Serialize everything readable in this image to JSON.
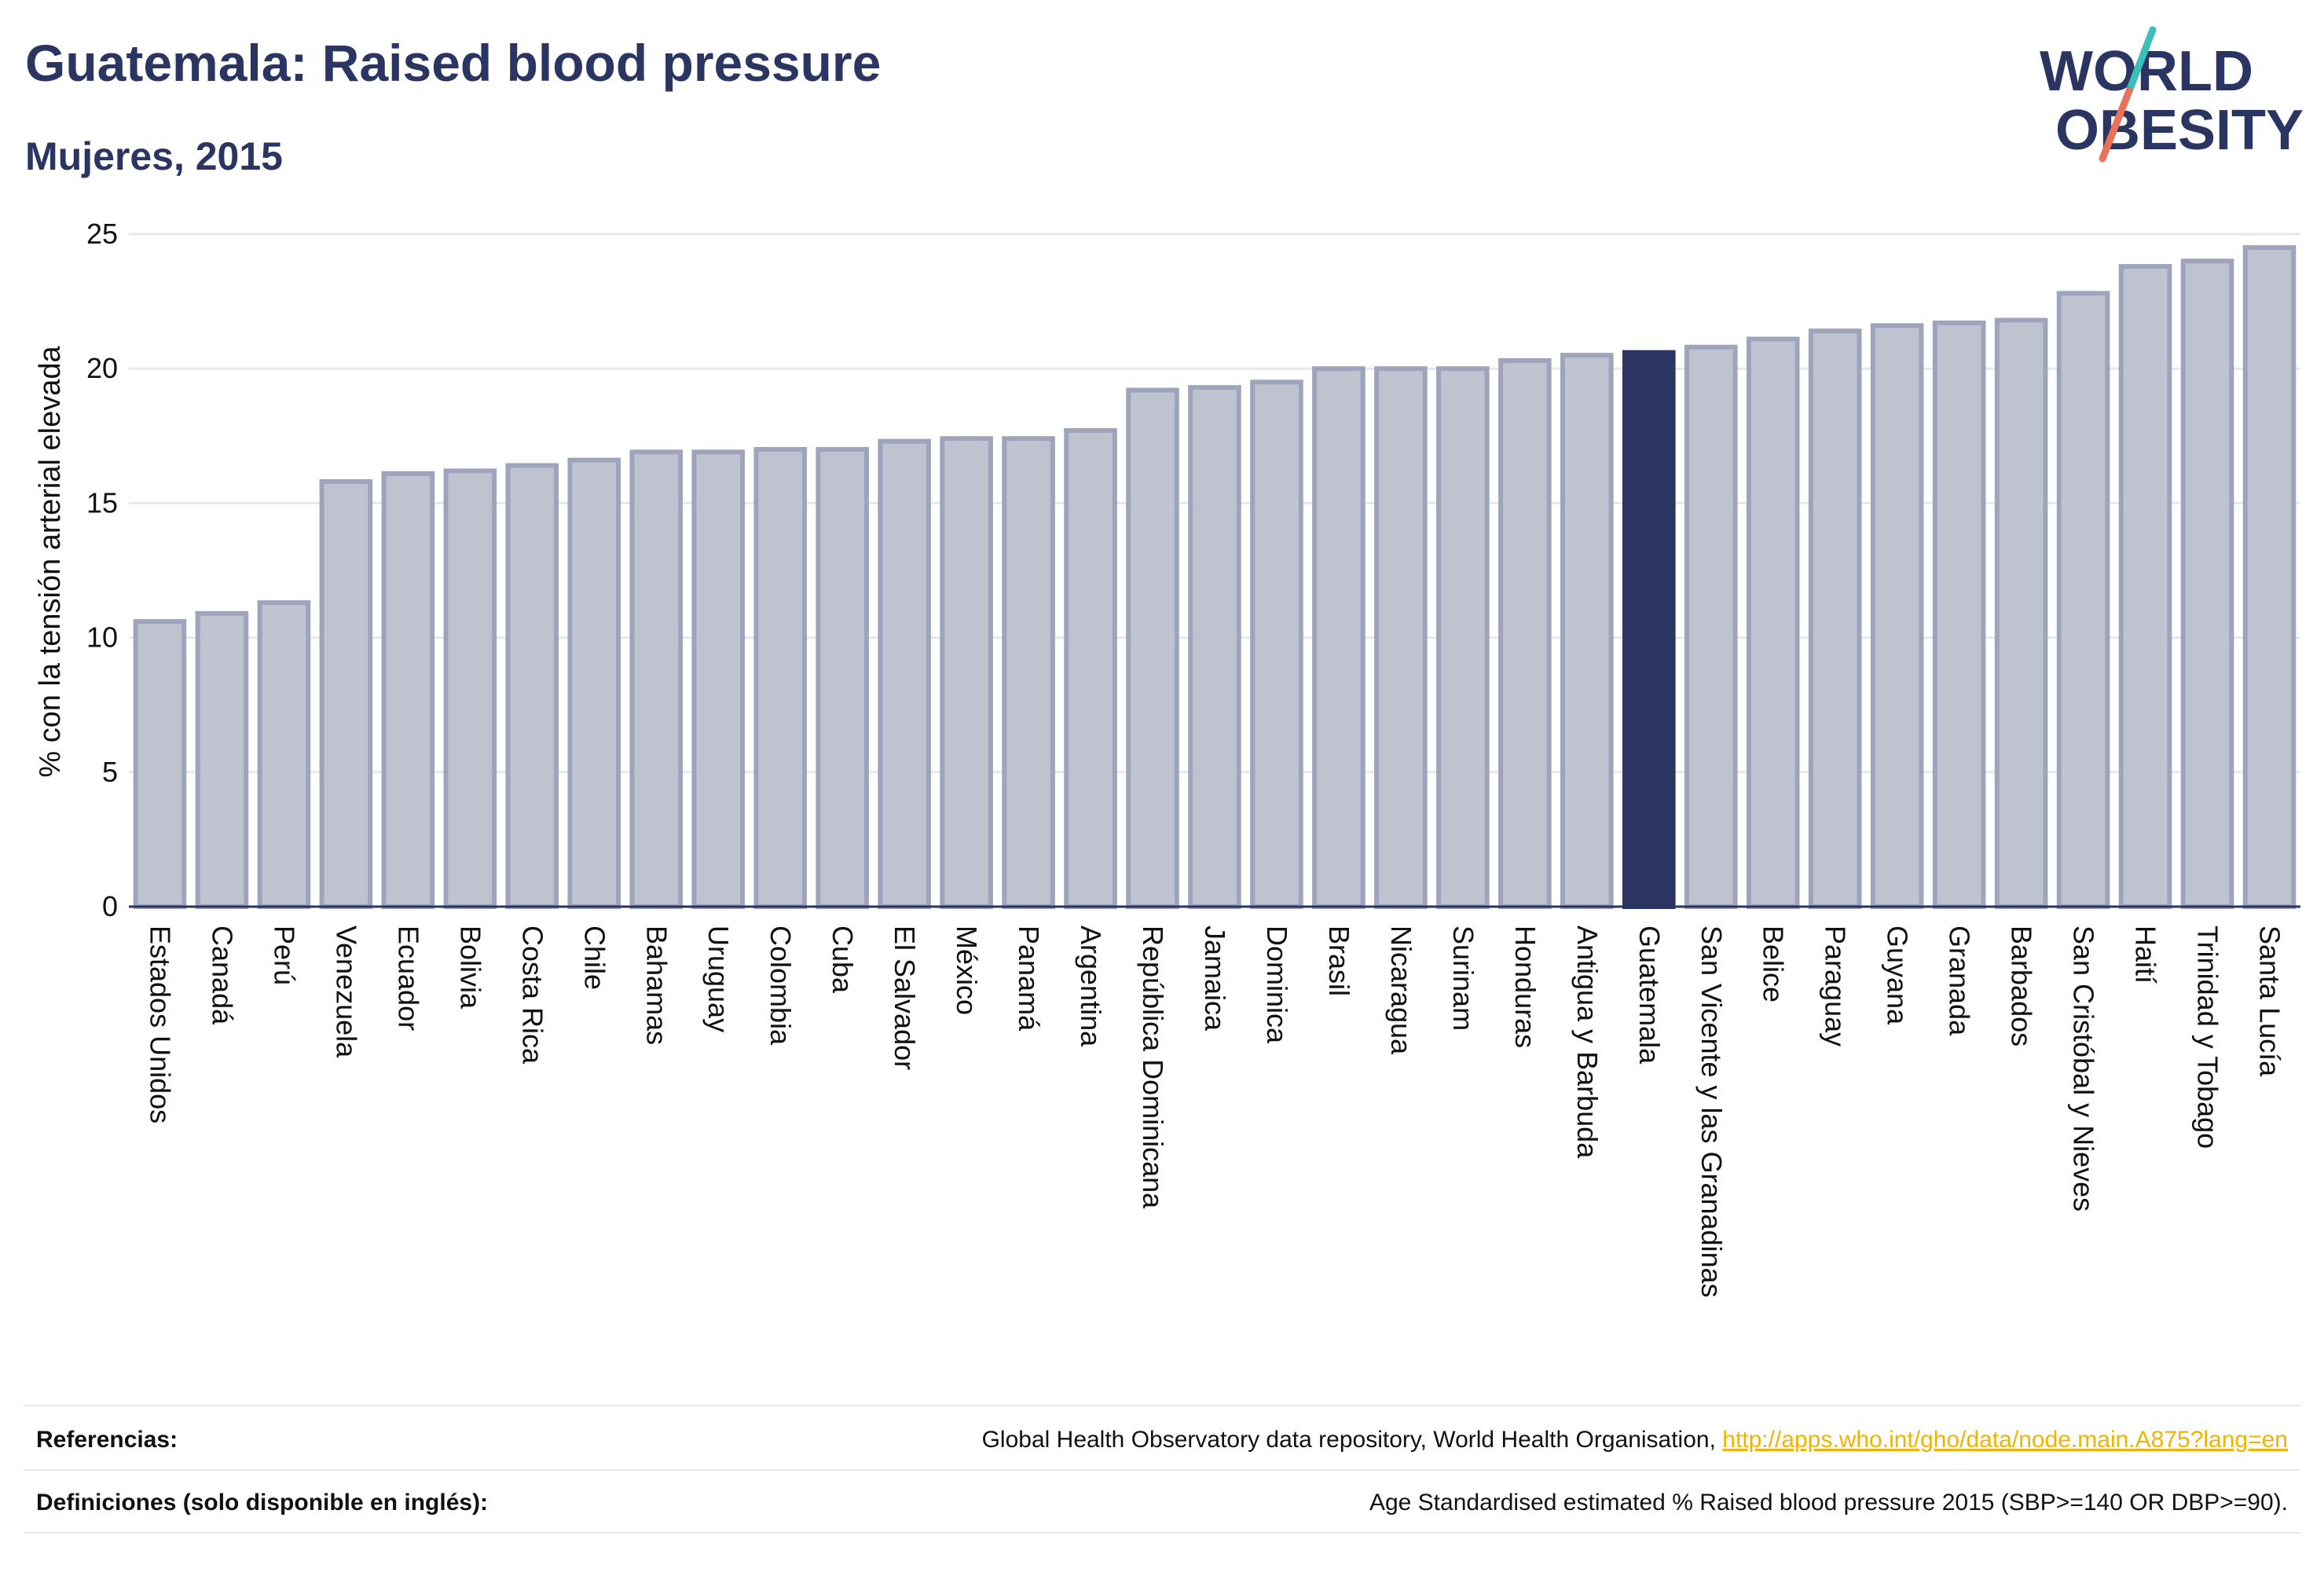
{
  "header": {
    "title": "Guatemala: Raised blood pressure",
    "subtitle": "Mujeres, 2015"
  },
  "logo": {
    "line1": "WORLD",
    "line2": "OBESITY",
    "text_color": "#2b3561",
    "accent_teal": "#3bbfb9",
    "accent_coral": "#e8735a"
  },
  "colors": {
    "bar_fill": "#bfc3d0",
    "bar_stroke": "#9ea4bb",
    "highlight_fill": "#2b3561",
    "grid": "#e6e8ee",
    "axis": "#2b3561"
  },
  "chart_data": {
    "type": "bar",
    "title": "Guatemala: Raised blood pressure",
    "subtitle": "Mujeres, 2015",
    "xlabel": "",
    "ylabel": "% con la tensión arterial elevada",
    "ylim": [
      0,
      25
    ],
    "yticks": [
      0,
      5,
      10,
      15,
      20,
      25
    ],
    "grid": true,
    "highlight": "Guatemala",
    "categories": [
      "Estados Unidos",
      "Canadá",
      "Perú",
      "Venezuela",
      "Ecuador",
      "Bolivia",
      "Costa Rica",
      "Chile",
      "Bahamas",
      "Uruguay",
      "Colombia",
      "Cuba",
      "El Salvador",
      "México",
      "Panamá",
      "Argentina",
      "República Dominicana",
      "Jamaica",
      "Dominica",
      "Brasil",
      "Nicaragua",
      "Surinam",
      "Honduras",
      "Antigua y Barbuda",
      "Guatemala",
      "San Vicente y las Granadinas",
      "Belice",
      "Paraguay",
      "Guyana",
      "Granada",
      "Barbados",
      "San Cristóbal y Nieves",
      "Haití",
      "Trinidad y Tobago",
      "Santa Lucía"
    ],
    "values": [
      10.6,
      10.9,
      11.3,
      15.8,
      16.1,
      16.2,
      16.4,
      16.6,
      16.9,
      16.9,
      17.0,
      17.0,
      17.3,
      17.4,
      17.4,
      17.7,
      19.2,
      19.3,
      19.5,
      20.0,
      20.0,
      20.0,
      20.3,
      20.5,
      20.6,
      20.8,
      21.1,
      21.4,
      21.6,
      21.7,
      21.8,
      22.8,
      23.8,
      24.0,
      24.5
    ]
  },
  "footer": {
    "references_label": "Referencias:",
    "references_text": "Global Health Observatory data repository, World Health Organisation, ",
    "references_link": "http://apps.who.int/gho/data/node.main.A875?lang=en",
    "definitions_label": "Definiciones (solo disponible en inglés):",
    "definitions_text": "Age Standardised estimated % Raised blood pressure 2015 (SBP>=140 OR DBP>=90)."
  }
}
